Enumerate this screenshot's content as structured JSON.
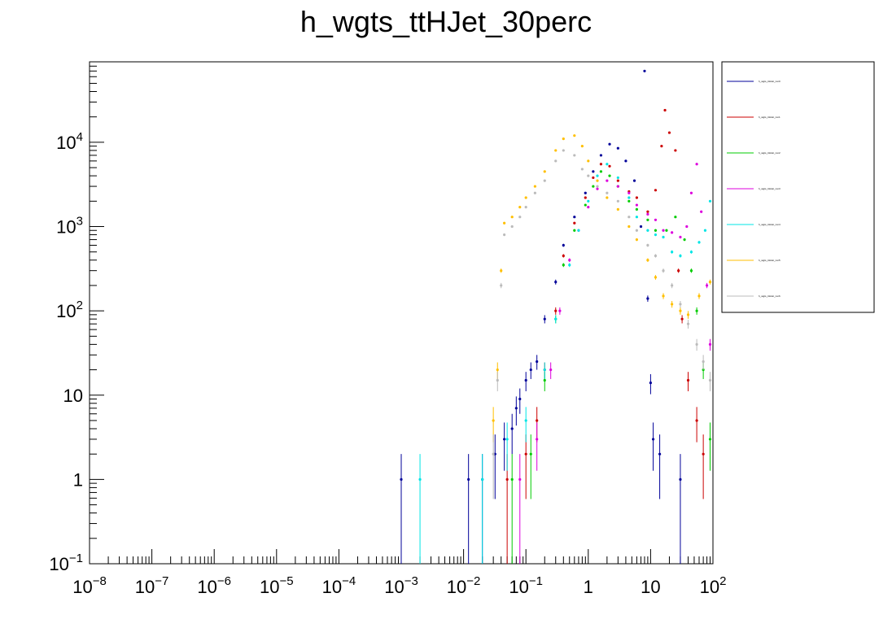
{
  "chart_data": {
    "type": "scatter",
    "title": "h_wgts_ttHJet_30perc",
    "xscale": "log",
    "yscale": "log",
    "xlim": [
      1e-08,
      100
    ],
    "ylim": [
      0.1,
      90000
    ],
    "x_ticks": [
      {
        "base": "10",
        "exp": "−8"
      },
      {
        "base": "10",
        "exp": "−7"
      },
      {
        "base": "10",
        "exp": "−6"
      },
      {
        "base": "10",
        "exp": "−5"
      },
      {
        "base": "10",
        "exp": "−4"
      },
      {
        "base": "10",
        "exp": "−3"
      },
      {
        "base": "10",
        "exp": "−2"
      },
      {
        "base": "10",
        "exp": "−1"
      },
      {
        "base": "1",
        "exp": ""
      },
      {
        "base": "10",
        "exp": ""
      },
      {
        "base": "10",
        "exp": "2"
      }
    ],
    "y_ticks": [
      {
        "base": "10",
        "exp": "−1"
      },
      {
        "base": "1",
        "exp": ""
      },
      {
        "base": "10",
        "exp": ""
      },
      {
        "base": "10",
        "exp": "2"
      },
      {
        "base": "10",
        "exp": "3"
      },
      {
        "base": "10",
        "exp": "4"
      }
    ],
    "legend_position": "right",
    "series": [
      {
        "name": "h_wgts_ttHJet_run0",
        "color": "#000099",
        "points": [
          [
            0.001,
            1
          ],
          [
            0.012,
            1
          ],
          [
            0.02,
            1
          ],
          [
            0.032,
            2
          ],
          [
            0.045,
            3
          ],
          [
            0.06,
            4
          ],
          [
            0.07,
            7
          ],
          [
            0.08,
            9
          ],
          [
            0.1,
            15
          ],
          [
            0.12,
            20
          ],
          [
            0.15,
            25
          ],
          [
            0.2,
            80
          ],
          [
            0.3,
            220
          ],
          [
            0.4,
            600
          ],
          [
            0.6,
            1300
          ],
          [
            0.9,
            2500
          ],
          [
            1.2,
            4500
          ],
          [
            1.6,
            7000
          ],
          [
            2.2,
            9500
          ],
          [
            3.0,
            8500
          ],
          [
            4.0,
            6000
          ],
          [
            5.5,
            3500
          ],
          [
            7,
            1000
          ],
          [
            8,
            70000
          ],
          [
            9,
            140
          ],
          [
            10,
            14
          ],
          [
            11,
            3
          ],
          [
            14,
            2
          ],
          [
            30,
            1
          ]
        ]
      },
      {
        "name": "h_wgts_ttHJet_run1",
        "color": "#cc0000",
        "points": [
          [
            0.05,
            1
          ],
          [
            0.1,
            2
          ],
          [
            0.15,
            5
          ],
          [
            0.2,
            20
          ],
          [
            0.3,
            100
          ],
          [
            0.4,
            450
          ],
          [
            0.6,
            1100
          ],
          [
            0.9,
            2200
          ],
          [
            1.2,
            3800
          ],
          [
            1.6,
            5500
          ],
          [
            2.2,
            5200
          ],
          [
            3.0,
            3500
          ],
          [
            4.5,
            2600
          ],
          [
            6,
            2200
          ],
          [
            9,
            1500
          ],
          [
            12,
            2700
          ],
          [
            15,
            9000
          ],
          [
            17,
            24000
          ],
          [
            20,
            13000
          ],
          [
            25,
            8000
          ],
          [
            28,
            300
          ],
          [
            32,
            80
          ],
          [
            40,
            15
          ],
          [
            55,
            5
          ],
          [
            70,
            2
          ]
        ]
      },
      {
        "name": "h_wgts_ttHJet_run2",
        "color": "#00cc00",
        "points": [
          [
            0.06,
            1
          ],
          [
            0.12,
            2
          ],
          [
            0.2,
            15
          ],
          [
            0.3,
            80
          ],
          [
            0.4,
            350
          ],
          [
            0.6,
            900
          ],
          [
            0.9,
            1800
          ],
          [
            1.2,
            3000
          ],
          [
            1.6,
            4500
          ],
          [
            2.2,
            4000
          ],
          [
            3.0,
            3000
          ],
          [
            4.5,
            2000
          ],
          [
            6,
            1600
          ],
          [
            9,
            1200
          ],
          [
            12,
            900
          ],
          [
            18,
            900
          ],
          [
            25,
            1300
          ],
          [
            35,
            700
          ],
          [
            45,
            300
          ],
          [
            55,
            100
          ],
          [
            70,
            20
          ],
          [
            90,
            3
          ]
        ]
      },
      {
        "name": "h_wgts_ttHJet_run3",
        "color": "#dd00dd",
        "points": [
          [
            0.08,
            1
          ],
          [
            0.15,
            3
          ],
          [
            0.25,
            20
          ],
          [
            0.35,
            100
          ],
          [
            0.5,
            400
          ],
          [
            0.7,
            900
          ],
          [
            1.0,
            1700
          ],
          [
            1.4,
            2800
          ],
          [
            2.0,
            3500
          ],
          [
            3.0,
            3000
          ],
          [
            4.5,
            2500
          ],
          [
            6,
            1800
          ],
          [
            9,
            1400
          ],
          [
            12,
            1200
          ],
          [
            16,
            900
          ],
          [
            22,
            850
          ],
          [
            30,
            750
          ],
          [
            38,
            1000
          ],
          [
            45,
            2500
          ],
          [
            55,
            5500
          ],
          [
            65,
            1500
          ],
          [
            80,
            200
          ],
          [
            90,
            40
          ]
        ]
      },
      {
        "name": "h_wgts_ttHJet_run4",
        "color": "#00e5e5",
        "points": [
          [
            0.002,
            1
          ],
          [
            0.02,
            1
          ],
          [
            0.05,
            3
          ],
          [
            0.1,
            5
          ],
          [
            0.2,
            20
          ],
          [
            0.3,
            80
          ],
          [
            0.5,
            350
          ],
          [
            0.7,
            900
          ],
          [
            1.0,
            2000
          ],
          [
            1.4,
            4000
          ],
          [
            2.0,
            5500
          ],
          [
            3.0,
            3800
          ],
          [
            4.5,
            2200
          ],
          [
            6,
            1300
          ],
          [
            9,
            900
          ],
          [
            12,
            800
          ],
          [
            16,
            750
          ],
          [
            22,
            500
          ],
          [
            30,
            450
          ],
          [
            45,
            500
          ],
          [
            60,
            650
          ],
          [
            75,
            900
          ],
          [
            90,
            2000
          ]
        ]
      },
      {
        "name": "h_wgts_ttHJet_run5",
        "color": "#ffbf00",
        "points": [
          [
            0.03,
            5
          ],
          [
            0.035,
            20
          ],
          [
            0.04,
            300
          ],
          [
            0.045,
            1100
          ],
          [
            0.06,
            1300
          ],
          [
            0.08,
            1700
          ],
          [
            0.1,
            2200
          ],
          [
            0.14,
            3000
          ],
          [
            0.2,
            4500
          ],
          [
            0.3,
            8000
          ],
          [
            0.4,
            11000
          ],
          [
            0.6,
            12000
          ],
          [
            0.8,
            9000
          ],
          [
            1.0,
            6000
          ],
          [
            1.4,
            3500
          ],
          [
            2.0,
            2200
          ],
          [
            3.0,
            1600
          ],
          [
            4.5,
            1000
          ],
          [
            6,
            700
          ],
          [
            9,
            400
          ],
          [
            12,
            250
          ],
          [
            16,
            150
          ],
          [
            22,
            120
          ],
          [
            30,
            100
          ],
          [
            40,
            90
          ],
          [
            60,
            150
          ],
          [
            90,
            220
          ]
        ]
      },
      {
        "name": "h_wgts_ttHJet_run6",
        "color": "#bbbbbb",
        "points": [
          [
            0.03,
            2
          ],
          [
            0.035,
            15
          ],
          [
            0.04,
            200
          ],
          [
            0.045,
            800
          ],
          [
            0.06,
            1000
          ],
          [
            0.08,
            1300
          ],
          [
            0.1,
            1700
          ],
          [
            0.14,
            2500
          ],
          [
            0.2,
            3500
          ],
          [
            0.3,
            6000
          ],
          [
            0.4,
            8000
          ],
          [
            0.6,
            7000
          ],
          [
            0.8,
            4800
          ],
          [
            1.0,
            4000
          ],
          [
            1.4,
            3000
          ],
          [
            2.0,
            2500
          ],
          [
            3.0,
            2000
          ],
          [
            4.5,
            1300
          ],
          [
            6,
            900
          ],
          [
            9,
            600
          ],
          [
            12,
            450
          ],
          [
            16,
            300
          ],
          [
            22,
            200
          ],
          [
            30,
            120
          ],
          [
            40,
            70
          ],
          [
            55,
            40
          ],
          [
            70,
            25
          ],
          [
            90,
            15
          ]
        ]
      }
    ]
  }
}
